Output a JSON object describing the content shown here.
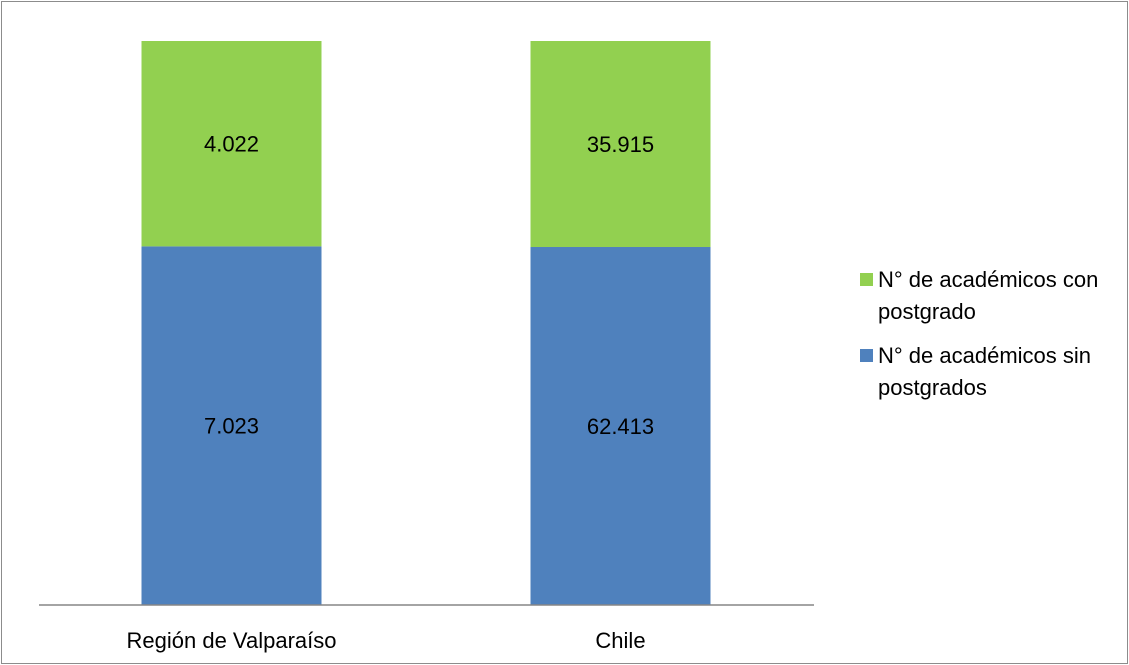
{
  "chart_data": {
    "type": "bar",
    "stacked": true,
    "normalized": true,
    "categories": [
      "Región de Valparaíso",
      "Chile"
    ],
    "series": [
      {
        "name": "N° de académicos sin postgrados",
        "values": [
          7023,
          62413
        ],
        "labels": [
          "7.023",
          "62.413"
        ],
        "color": "#4f81bd"
      },
      {
        "name": "N° de académicos con postgrado",
        "values": [
          4022,
          35915
        ],
        "labels": [
          "4.022",
          "35.915"
        ],
        "color": "#92d050"
      }
    ],
    "legend_order": [
      1,
      0
    ],
    "legend_lines": [
      [
        "N° de académicos con",
        "postgrado"
      ],
      [
        "N° de académicos sin",
        "postgrados"
      ]
    ],
    "legend_position": "right",
    "grid": false,
    "title": "",
    "xlabel": "",
    "ylabel": ""
  }
}
